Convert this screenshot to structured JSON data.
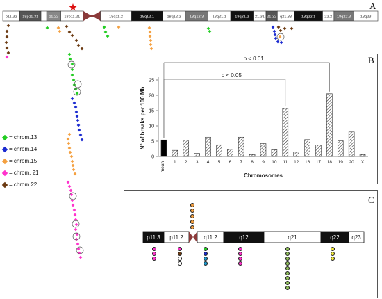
{
  "panel_a": {
    "letter": "A",
    "bands": [
      {
        "label": "p11.32",
        "w": 24,
        "fill": "#ffffff",
        "tc": "#333"
      },
      {
        "label": "18p11.31",
        "w": 30,
        "fill": "#555555",
        "tc": "#ffffff"
      },
      {
        "label": "",
        "w": 8,
        "fill": "#ffffff",
        "tc": "#333"
      },
      {
        "label": "11.22",
        "w": 20,
        "fill": "#888888",
        "tc": "#ffffff"
      },
      {
        "label": "18p11.21",
        "w": 32,
        "fill": "#ffffff",
        "tc": "#333"
      },
      {
        "label": "CEN",
        "w": 24,
        "fill": "#8b3a3a",
        "tc": "#ffffff"
      },
      {
        "label": "18q11.2",
        "w": 44,
        "fill": "#ffffff",
        "tc": "#333"
      },
      {
        "label": "18q12.1",
        "w": 44,
        "fill": "#111111",
        "tc": "#ffffff"
      },
      {
        "label": "18q12.2",
        "w": 32,
        "fill": "#ffffff",
        "tc": "#333"
      },
      {
        "label": "18q12.3",
        "w": 32,
        "fill": "#777777",
        "tc": "#ffffff"
      },
      {
        "label": "18q21.1",
        "w": 32,
        "fill": "#ffffff",
        "tc": "#333"
      },
      {
        "label": "18q21.2",
        "w": 32,
        "fill": "#111111",
        "tc": "#ffffff"
      },
      {
        "label": "21.31",
        "w": 18,
        "fill": "#ffffff",
        "tc": "#333"
      },
      {
        "label": "21.32",
        "w": 16,
        "fill": "#555555",
        "tc": "#ffffff"
      },
      {
        "label": "q21.33",
        "w": 24,
        "fill": "#ffffff",
        "tc": "#333"
      },
      {
        "label": "18q22.1",
        "w": 40,
        "fill": "#111111",
        "tc": "#ffffff"
      },
      {
        "label": "22.2",
        "w": 16,
        "fill": "#ffffff",
        "tc": "#333"
      },
      {
        "label": "18q22.3",
        "w": 28,
        "fill": "#777777",
        "tc": "#ffffff"
      },
      {
        "label": "18q23",
        "w": 34,
        "fill": "#ffffff",
        "tc": "#333"
      }
    ],
    "legend": [
      {
        "label": "= chrom.13",
        "color": "#22cc22",
        "icon": "diamond-marker"
      },
      {
        "label": "= chrom.14",
        "color": "#1a2ad0",
        "icon": "diamond-marker"
      },
      {
        "label": "= chrom.15",
        "color": "#f4a040",
        "icon": "diamond-marker"
      },
      {
        "label": "= chrom. 21",
        "color": "#ff33cc",
        "icon": "diamond-marker"
      },
      {
        "label": "= chrom.22",
        "color": "#6b3a12",
        "icon": "diamond-marker"
      }
    ]
  },
  "panel_b": {
    "letter": "B",
    "chart_data": {
      "type": "bar",
      "categories": [
        "mean",
        "1",
        "2",
        "3",
        "4",
        "5",
        "6",
        "7",
        "8",
        "9",
        "10",
        "11",
        "12",
        "16",
        "17",
        "18",
        "19",
        "20",
        "X"
      ],
      "values": [
        5.4,
        2.0,
        5.3,
        1.0,
        6.3,
        3.8,
        2.3,
        6.3,
        0.6,
        4.2,
        2.2,
        15.7,
        1.4,
        5.5,
        3.7,
        20.5,
        5.1,
        8.0,
        0.6
      ],
      "highlight": "mean",
      "ylabel": "N° of breaks per 100 Mb",
      "xlabel": "Chromosomes",
      "ylim": [
        0,
        25
      ],
      "yticks": [
        "0",
        "5",
        "10",
        "15",
        "20",
        "25"
      ],
      "annotations": [
        {
          "text": "p < 0.01",
          "from": "mean",
          "to": "18"
        },
        {
          "text": "p < 0.05",
          "from": "mean",
          "to": "11"
        }
      ],
      "bar_colors": {
        "mean": "#000000",
        "other": "hatched"
      }
    }
  },
  "panel_c": {
    "letter": "C",
    "bands": [
      {
        "label": "p11.3",
        "w": 30,
        "fill": "#111111",
        "tc": "#ffffff"
      },
      {
        "label": "p11.2",
        "w": 36,
        "fill": "#ffffff",
        "tc": "#111111"
      },
      {
        "label": "CEN",
        "w": 12,
        "fill": "#8b3a3a",
        "tc": "#ffffff"
      },
      {
        "label": "q11.2",
        "w": 38,
        "fill": "#ffffff",
        "tc": "#111111"
      },
      {
        "label": "q12",
        "w": 58,
        "fill": "#111111",
        "tc": "#ffffff"
      },
      {
        "label": "q21",
        "w": 82,
        "fill": "#ffffff",
        "tc": "#111111"
      },
      {
        "label": "q22",
        "w": 40,
        "fill": "#111111",
        "tc": "#ffffff"
      },
      {
        "label": "q23",
        "w": 22,
        "fill": "#ffffff",
        "tc": "#111111"
      }
    ]
  }
}
